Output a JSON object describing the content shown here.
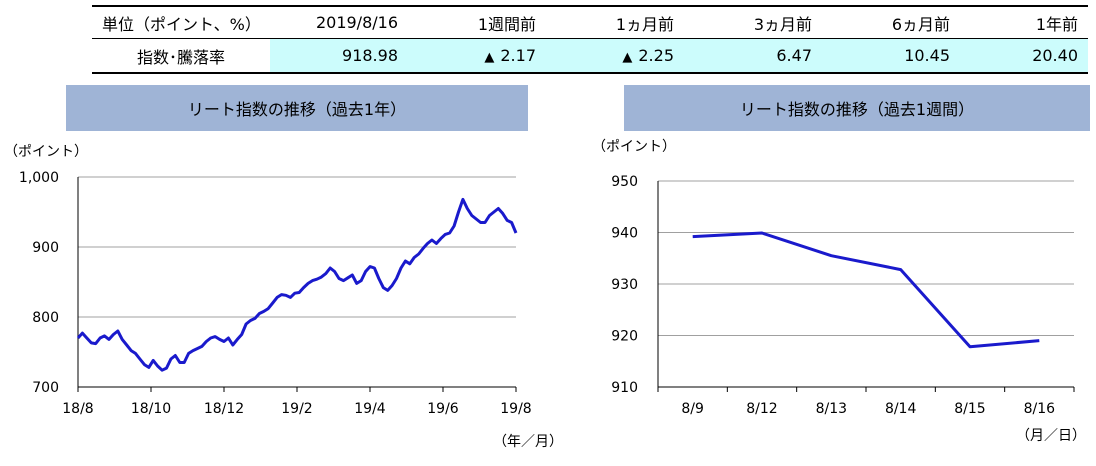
{
  "summary": {
    "header": [
      "単位（ポイント、%）",
      "2019/8/16",
      "1週間前",
      "1ヵ月前",
      "3ヵ月前",
      "6ヵ月前",
      "1年前"
    ],
    "row_label": "指数･騰落率",
    "values": [
      {
        "text": "918.98",
        "marker": ""
      },
      {
        "text": "2.17",
        "marker": "▲"
      },
      {
        "text": "2.25",
        "marker": "▲"
      },
      {
        "text": "6.47",
        "marker": ""
      },
      {
        "text": "10.45",
        "marker": ""
      },
      {
        "text": "20.40",
        "marker": ""
      }
    ]
  },
  "line_color": "#1a1acc",
  "grid_color": "#a0a0a0",
  "title_bar_color": "#9fb4d6",
  "highlight_color": "#ccfcfc",
  "chart_data": [
    {
      "type": "line",
      "title": "リート指数の推移（過去1年）",
      "ylabel": "（ポイント）",
      "xlabel": "（年／月）",
      "ylim": [
        700,
        1000
      ],
      "yticks": [
        700,
        800,
        900,
        1000
      ],
      "ytick_labels": [
        "700",
        "800",
        "900",
        "1,000"
      ],
      "xticks": [
        "18/8",
        "18/10",
        "18/12",
        "19/2",
        "19/4",
        "19/6",
        "19/8"
      ],
      "grid": true,
      "series": [
        {
          "values": [
            770,
            777,
            770,
            763,
            762,
            770,
            773,
            768,
            775,
            780,
            768,
            760,
            752,
            748,
            740,
            732,
            728,
            738,
            730,
            724,
            727,
            740,
            745,
            735,
            735,
            748,
            752,
            755,
            758,
            765,
            770,
            772,
            768,
            765,
            770,
            760,
            768,
            775,
            790,
            795,
            798,
            805,
            808,
            812,
            820,
            828,
            832,
            831,
            828,
            834,
            835,
            842,
            848,
            852,
            854,
            857,
            862,
            870,
            865,
            855,
            852,
            856,
            860,
            848,
            852,
            865,
            872,
            870,
            855,
            842,
            838,
            845,
            855,
            870,
            880,
            876,
            885,
            890,
            898,
            905,
            910,
            905,
            912,
            918,
            920,
            930,
            950,
            968,
            955,
            945,
            940,
            935,
            935,
            945,
            950,
            955,
            948,
            938,
            935,
            920
          ]
        }
      ]
    },
    {
      "type": "line",
      "title": "リート指数の推移（過去1週間）",
      "ylabel": "（ポイント）",
      "xlabel": "（月／日）",
      "ylim": [
        910,
        950
      ],
      "yticks": [
        910,
        920,
        930,
        940,
        950
      ],
      "grid": true,
      "categories": [
        "8/9",
        "8/12",
        "8/13",
        "8/14",
        "8/15",
        "8/16"
      ],
      "series": [
        {
          "values": [
            939.2,
            939.9,
            935.5,
            932.8,
            917.8,
            919.0
          ]
        }
      ]
    }
  ]
}
